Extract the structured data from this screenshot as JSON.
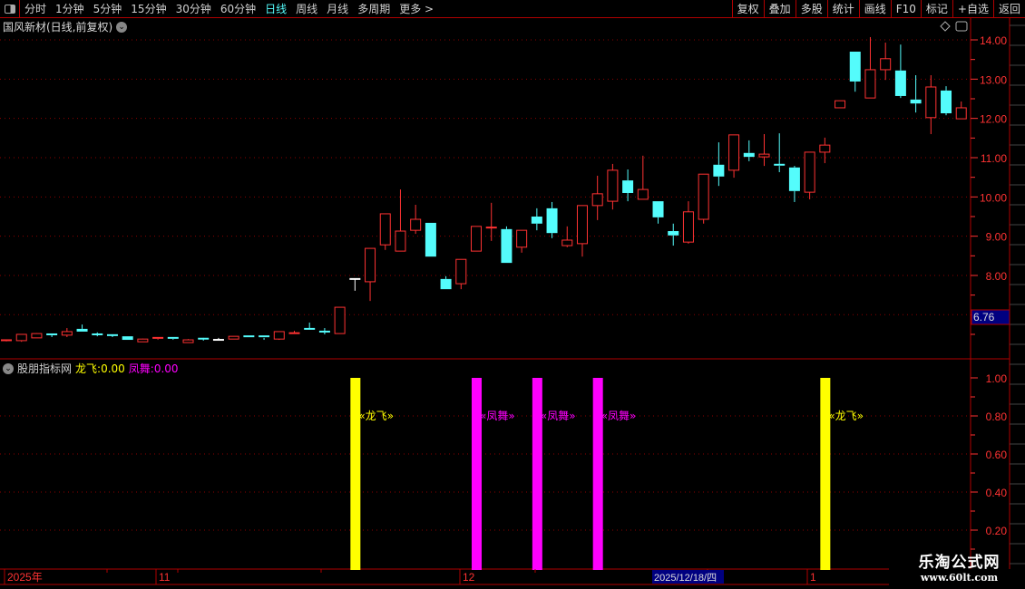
{
  "toolbar": {
    "periods": [
      "分时",
      "1分钟",
      "5分钟",
      "15分钟",
      "30分钟",
      "60分钟",
      "日线",
      "周线",
      "月线",
      "多周期",
      "更多 >"
    ],
    "active_period": "日线",
    "buttons": [
      "复权",
      "叠加",
      "多股",
      "统计",
      "画线",
      "F10",
      "标记",
      "+自选",
      "返回"
    ]
  },
  "chart": {
    "title": "国风新材(日线,前复权)",
    "price_axis": [
      "14.00",
      "13.00",
      "12.00",
      "11.00",
      "10.00",
      "9.00",
      "8.00"
    ],
    "cursor_price": "6.76",
    "colors": {
      "up": "#ff3232",
      "down": "#54fcfc",
      "flat": "#ffffff",
      "grid": "#8b0000",
      "axis": "#ff3232",
      "frame": "#b00000"
    }
  },
  "indicator": {
    "name": "股朋指标网",
    "longfei_label": "龙飞:",
    "longfei_value": "0.00",
    "fengwu_label": "凤舞:",
    "fengwu_value": "0.00",
    "axis": [
      "1.00",
      "0.80",
      "0.60",
      "0.40",
      "0.20"
    ],
    "signal_text": {
      "longfei": "龙飞",
      "fengwu": "凤舞"
    },
    "colors": {
      "longfei": "#ffff00",
      "fengwu": "#ff00ff"
    }
  },
  "date_axis": {
    "labels": [
      "2025年",
      "11",
      "12",
      "1"
    ],
    "cursor_date": "2025/12/18/四"
  },
  "watermark": {
    "name": "乐淘公式网",
    "url": "www.60lt.com"
  },
  "chart_data": {
    "type": "candlestick",
    "ohlc": [
      [
        6.34,
        6.36,
        6.32,
        6.35
      ],
      [
        6.34,
        6.5,
        6.31,
        6.5
      ],
      [
        6.41,
        6.53,
        6.41,
        6.52
      ],
      [
        6.5,
        6.52,
        6.43,
        6.48
      ],
      [
        6.48,
        6.66,
        6.43,
        6.57
      ],
      [
        6.64,
        6.75,
        6.57,
        6.57
      ],
      [
        6.5,
        6.55,
        6.45,
        6.49
      ],
      [
        6.48,
        6.5,
        6.43,
        6.47
      ],
      [
        6.45,
        6.45,
        6.36,
        6.36
      ],
      [
        6.31,
        6.39,
        6.31,
        6.38
      ],
      [
        6.38,
        6.41,
        6.36,
        6.41
      ],
      [
        6.41,
        6.41,
        6.36,
        6.38
      ],
      [
        6.29,
        6.38,
        6.29,
        6.36
      ],
      [
        6.39,
        6.41,
        6.34,
        6.38
      ],
      [
        6.36,
        6.41,
        6.36,
        6.36
      ],
      [
        6.38,
        6.45,
        6.38,
        6.45
      ],
      [
        6.45,
        6.46,
        6.43,
        6.43
      ],
      [
        6.45,
        6.45,
        6.36,
        6.41
      ],
      [
        6.38,
        6.57,
        6.36,
        6.57
      ],
      [
        6.52,
        6.59,
        6.52,
        6.53
      ],
      [
        6.64,
        6.8,
        6.61,
        6.61
      ],
      [
        6.57,
        6.66,
        6.5,
        6.56
      ],
      [
        6.52,
        7.19,
        6.52,
        7.19
      ],
      [
        7.91,
        7.91,
        7.61,
        7.91
      ],
      [
        7.84,
        8.69,
        7.35,
        8.69
      ],
      [
        8.78,
        9.57,
        8.65,
        9.57
      ],
      [
        8.62,
        10.19,
        8.62,
        9.13
      ],
      [
        9.15,
        9.8,
        9.06,
        9.43
      ],
      [
        9.34,
        9.34,
        8.48,
        8.48
      ],
      [
        7.91,
        7.98,
        7.65,
        7.65
      ],
      [
        7.79,
        8.41,
        7.65,
        8.41
      ],
      [
        8.62,
        9.25,
        8.62,
        9.25
      ],
      [
        9.2,
        9.85,
        8.88,
        9.22
      ],
      [
        9.18,
        9.25,
        8.32,
        8.32
      ],
      [
        8.72,
        9.15,
        8.58,
        9.15
      ],
      [
        9.5,
        9.71,
        9.15,
        9.32
      ],
      [
        9.71,
        9.87,
        8.95,
        9.08
      ],
      [
        8.76,
        9.25,
        8.72,
        8.9
      ],
      [
        8.81,
        9.78,
        8.48,
        9.78
      ],
      [
        9.78,
        10.54,
        9.41,
        10.08
      ],
      [
        9.89,
        10.84,
        9.68,
        10.68
      ],
      [
        10.42,
        10.7,
        9.89,
        10.1
      ],
      [
        9.94,
        11.05,
        9.94,
        10.19
      ],
      [
        9.89,
        9.89,
        9.32,
        9.48
      ],
      [
        9.13,
        9.32,
        8.76,
        9.02
      ],
      [
        8.85,
        9.89,
        8.81,
        9.62
      ],
      [
        9.43,
        10.58,
        9.32,
        10.58
      ],
      [
        10.82,
        11.39,
        10.28,
        10.52
      ],
      [
        10.68,
        11.58,
        10.49,
        11.58
      ],
      [
        11.12,
        11.44,
        10.91,
        11.02
      ],
      [
        11.02,
        11.6,
        10.79,
        11.09
      ],
      [
        10.82,
        11.62,
        10.63,
        10.79
      ],
      [
        10.75,
        10.79,
        9.87,
        10.15
      ],
      [
        10.12,
        11.14,
        9.94,
        11.14
      ],
      [
        11.14,
        11.51,
        10.86,
        11.32
      ],
      [
        12.27,
        12.45,
        12.27,
        12.45
      ],
      [
        13.7,
        13.7,
        12.68,
        12.94
      ],
      [
        12.52,
        14.07,
        12.52,
        13.24
      ],
      [
        13.24,
        13.93,
        12.98,
        13.52
      ],
      [
        13.22,
        13.88,
        12.52,
        12.57
      ],
      [
        12.48,
        13.1,
        12.15,
        12.38
      ],
      [
        12.02,
        13.1,
        11.6,
        12.8
      ],
      [
        12.71,
        12.82,
        12.08,
        12.13
      ],
      [
        11.99,
        12.43,
        11.99,
        12.27
      ]
    ],
    "price_range": [
      6.2,
      14.2
    ],
    "signals": [
      {
        "bar": 23,
        "type": "longfei",
        "value": 1.0
      },
      {
        "bar": 31,
        "type": "fengwu",
        "value": 1.0
      },
      {
        "bar": 35,
        "type": "fengwu",
        "value": 1.0
      },
      {
        "bar": 39,
        "type": "fengwu",
        "value": 1.0
      },
      {
        "bar": 54,
        "type": "longfei",
        "value": 1.0
      }
    ],
    "indicator_range": [
      0,
      1.0
    ],
    "grid": true
  }
}
